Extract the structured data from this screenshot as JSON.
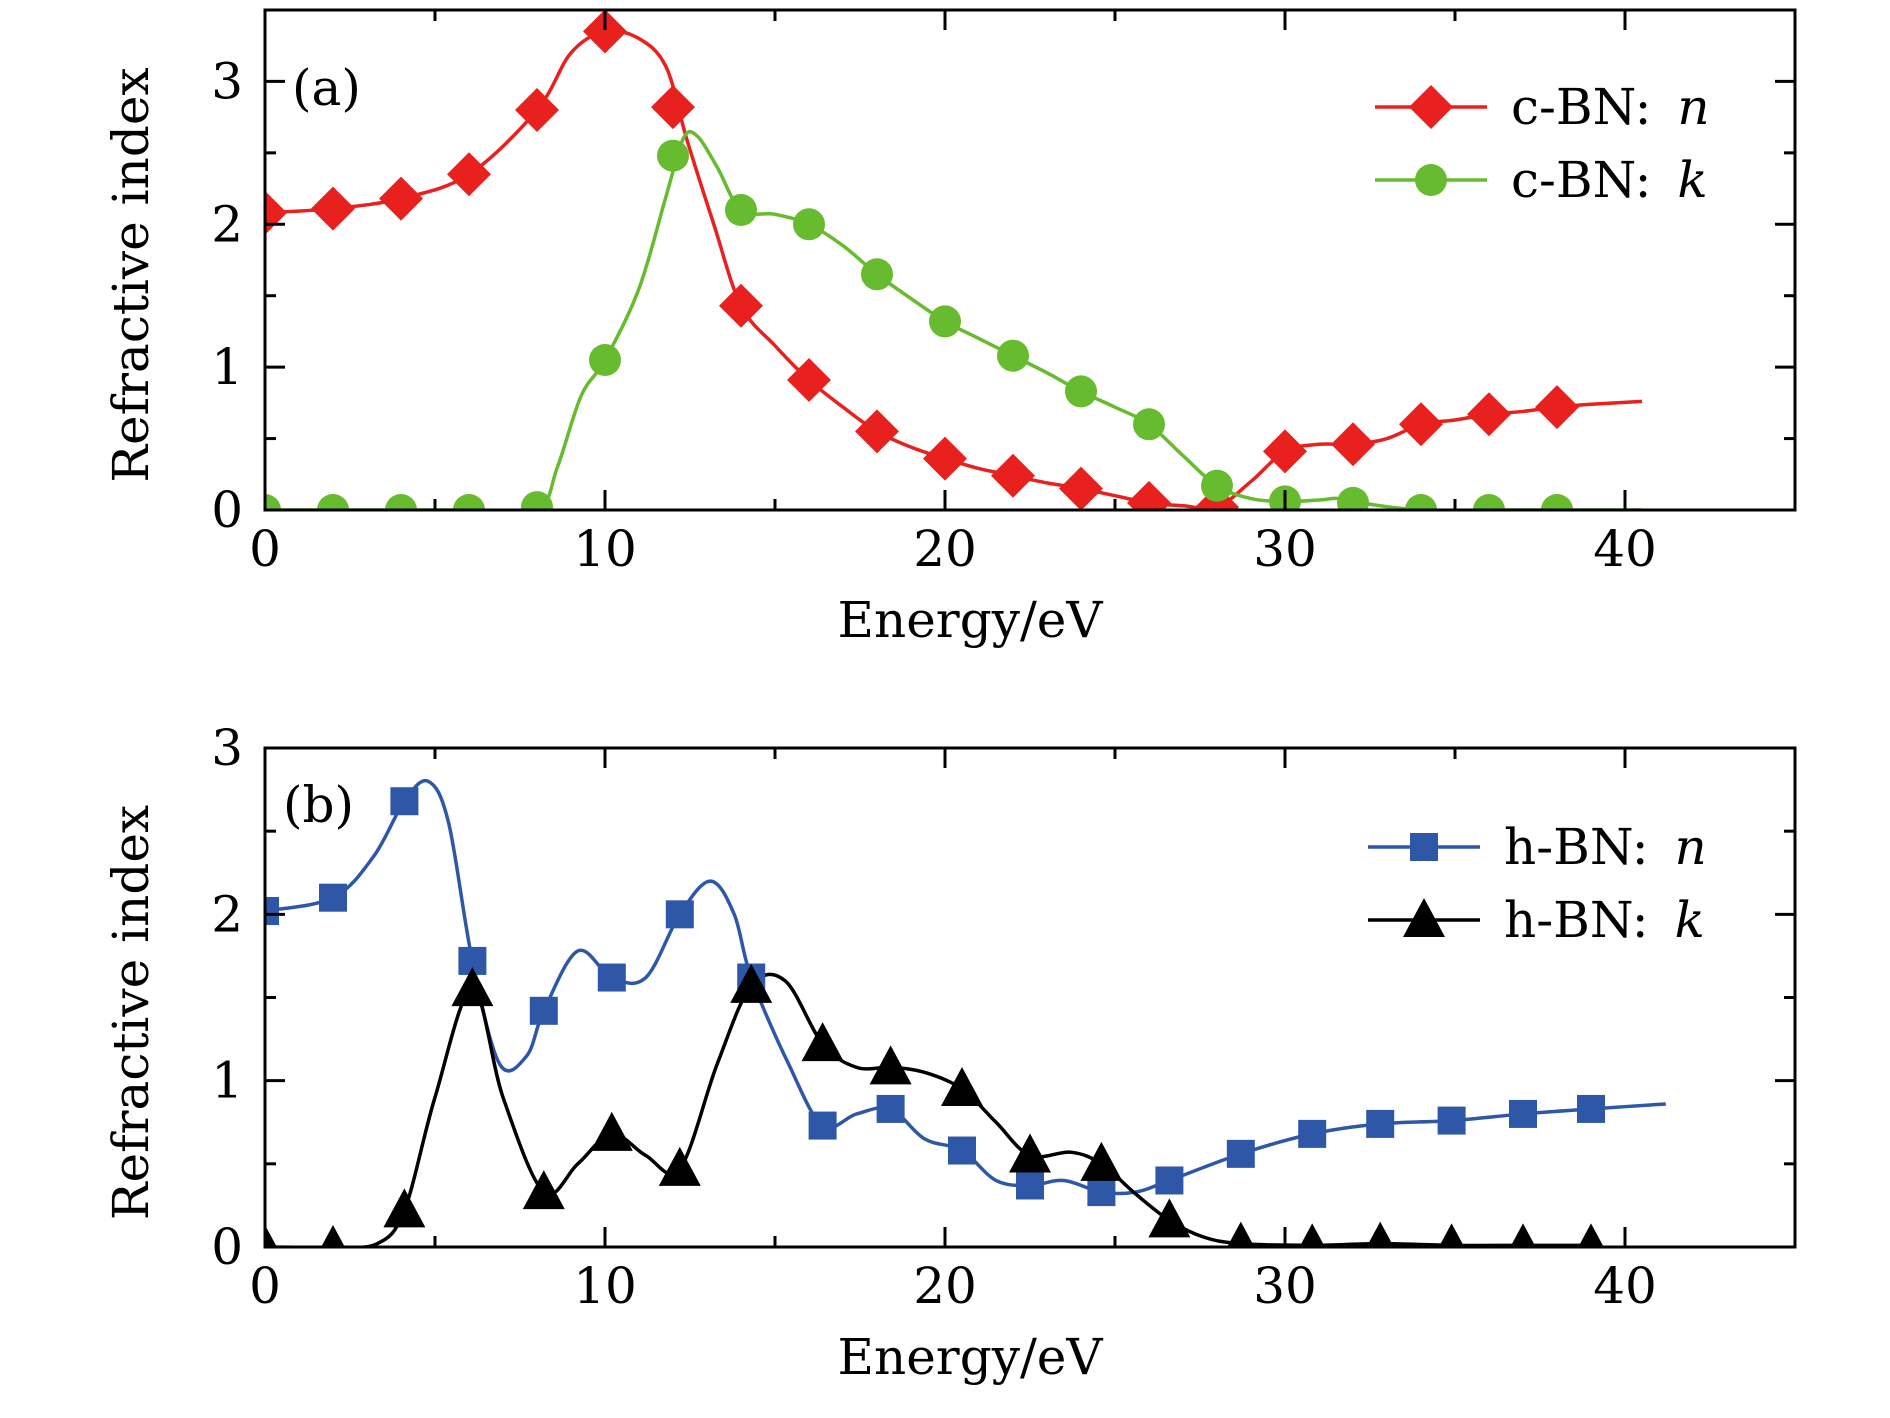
{
  "chart_data": [
    {
      "id": "a",
      "type": "line",
      "panel_label": "(a)",
      "xlabel": "Energy/eV",
      "ylabel": "Refractive index",
      "xlim": [
        0,
        45
      ],
      "ylim": [
        0,
        3.5
      ],
      "xticks": [
        0,
        10,
        20,
        30,
        40
      ],
      "yticks": [
        0,
        1,
        2,
        3
      ],
      "grid": false,
      "legend_position": "top-right",
      "series": [
        {
          "name": "c-BN: ",
          "var": "n",
          "color": "#e8201e",
          "marker": "diamond",
          "markers_x": [
            0,
            2,
            4,
            6,
            8,
            10,
            12,
            14,
            16,
            18,
            20,
            22,
            24,
            26,
            28,
            30,
            32,
            34,
            36,
            38
          ],
          "markers_y": [
            2.08,
            2.11,
            2.18,
            2.35,
            2.8,
            3.35,
            2.82,
            1.43,
            0.91,
            0.55,
            0.36,
            0.24,
            0.15,
            0.05,
            0.02,
            0.41,
            0.46,
            0.6,
            0.67,
            0.72
          ],
          "curve_x": [
            0,
            2,
            4,
            6,
            8,
            9,
            10,
            11,
            11.8,
            12.4,
            13.2,
            14,
            15,
            16,
            17,
            18,
            19,
            20,
            21,
            22,
            23,
            24,
            25,
            26,
            27,
            28,
            29,
            30,
            31,
            32,
            33,
            34,
            35,
            36,
            37,
            38,
            39,
            40.5
          ],
          "curve_y": [
            2.08,
            2.11,
            2.18,
            2.35,
            2.8,
            3.2,
            3.35,
            3.3,
            3.1,
            2.6,
            2.0,
            1.43,
            1.15,
            0.91,
            0.72,
            0.55,
            0.44,
            0.36,
            0.29,
            0.24,
            0.19,
            0.15,
            0.1,
            0.05,
            0.03,
            0.02,
            0.2,
            0.41,
            0.46,
            0.46,
            0.5,
            0.6,
            0.63,
            0.67,
            0.69,
            0.72,
            0.74,
            0.76
          ]
        },
        {
          "name": "c-BN: ",
          "var": "k",
          "color": "#66bb2e",
          "marker": "circle",
          "markers_x": [
            0,
            2,
            4,
            6,
            8,
            10,
            12,
            14,
            16,
            18,
            20,
            22,
            24,
            26,
            28,
            30,
            32,
            34,
            36,
            38
          ],
          "markers_y": [
            0.0,
            0.0,
            0.0,
            0.0,
            0.02,
            1.05,
            2.48,
            2.1,
            2.0,
            1.65,
            1.32,
            1.08,
            0.83,
            0.6,
            0.17,
            0.06,
            0.05,
            0.0,
            0.0,
            0.0
          ],
          "curve_x": [
            0,
            2,
            4,
            6,
            8,
            8.6,
            9.3,
            10,
            11,
            11.8,
            12.3,
            12.7,
            13.3,
            14,
            15,
            16,
            17,
            18,
            19,
            20,
            21,
            22,
            23,
            24,
            25,
            26,
            27,
            28,
            29,
            30,
            31,
            31.6,
            32.5,
            34,
            36,
            38,
            40.5
          ],
          "curve_y": [
            0.0,
            0.0,
            0.0,
            0.0,
            0.0,
            0.3,
            0.8,
            1.05,
            1.55,
            2.2,
            2.6,
            2.62,
            2.4,
            2.1,
            2.07,
            2.0,
            1.85,
            1.65,
            1.48,
            1.32,
            1.2,
            1.08,
            0.96,
            0.83,
            0.72,
            0.6,
            0.38,
            0.17,
            0.08,
            0.06,
            0.07,
            0.08,
            0.04,
            0.0,
            0.0,
            0.0,
            0.0
          ]
        }
      ]
    },
    {
      "id": "b",
      "type": "line",
      "panel_label": "(b)",
      "xlabel": "Energy/eV",
      "ylabel": "Refractive index",
      "xlim": [
        0,
        45
      ],
      "ylim": [
        0,
        3
      ],
      "xticks": [
        0,
        10,
        20,
        30,
        40
      ],
      "yticks": [
        0,
        1,
        2,
        3
      ],
      "grid": false,
      "legend_position": "top-right",
      "series": [
        {
          "name": "h-BN: ",
          "var": "n",
          "color": "#2e57a8",
          "marker": "square",
          "markers_x": [
            0,
            2,
            4.1,
            6.1,
            8.2,
            10.2,
            12.2,
            14.3,
            16.4,
            18.4,
            20.5,
            22.5,
            24.6,
            26.6,
            28.7,
            30.8,
            32.8,
            34.9,
            37,
            39
          ],
          "markers_y": [
            2.02,
            2.1,
            2.68,
            1.72,
            1.42,
            1.62,
            2.0,
            1.62,
            0.73,
            0.83,
            0.58,
            0.37,
            0.33,
            0.4,
            0.56,
            0.68,
            0.74,
            0.76,
            0.8,
            0.83
          ],
          "curve_x": [
            0,
            2,
            3.2,
            4.1,
            4.8,
            5.4,
            6.1,
            6.9,
            7.7,
            8.2,
            9.2,
            10.2,
            11.2,
            12.2,
            13.1,
            13.8,
            14.3,
            15.4,
            16.4,
            17.4,
            18.4,
            19.4,
            20.5,
            21.5,
            22.5,
            23.5,
            24.6,
            25.6,
            26.6,
            28.7,
            30.8,
            32.8,
            34.9,
            37,
            39,
            41.2
          ],
          "curve_y": [
            2.02,
            2.1,
            2.35,
            2.68,
            2.8,
            2.55,
            1.72,
            1.1,
            1.15,
            1.42,
            1.78,
            1.62,
            1.62,
            2.0,
            2.2,
            2.0,
            1.62,
            1.1,
            0.73,
            0.8,
            0.83,
            0.65,
            0.58,
            0.4,
            0.37,
            0.4,
            0.33,
            0.33,
            0.4,
            0.56,
            0.68,
            0.74,
            0.76,
            0.8,
            0.83,
            0.86
          ]
        },
        {
          "name": "h-BN: ",
          "var": "k",
          "color": "#000000",
          "marker": "triangle",
          "markers_x": [
            0,
            2,
            4.1,
            6.1,
            8.2,
            10.2,
            12.2,
            14.3,
            16.4,
            18.4,
            20.5,
            22.5,
            24.6,
            26.6,
            28.7,
            30.8,
            32.8,
            34.9,
            37,
            39
          ],
          "markers_y": [
            0.0,
            0.0,
            0.22,
            1.55,
            0.33,
            0.68,
            0.47,
            1.57,
            1.22,
            1.08,
            0.95,
            0.55,
            0.5,
            0.16,
            0.02,
            0.01,
            0.02,
            0.01,
            0.01,
            0.01
          ],
          "curve_x": [
            0,
            2,
            3.3,
            4.1,
            5.0,
            6.1,
            7.0,
            8.2,
            9.2,
            10.2,
            11.2,
            12.2,
            13.3,
            14.3,
            15.3,
            16.4,
            17.4,
            18.4,
            19.4,
            20.5,
            21.5,
            22.5,
            23.7,
            24.6,
            25.6,
            26.6,
            27.6,
            28.7,
            30.8,
            32.8,
            34.9,
            37,
            39
          ],
          "curve_y": [
            0.0,
            0.0,
            0.02,
            0.22,
            0.9,
            1.55,
            0.9,
            0.33,
            0.5,
            0.68,
            0.55,
            0.47,
            1.1,
            1.57,
            1.6,
            1.22,
            1.08,
            1.08,
            1.05,
            0.95,
            0.75,
            0.55,
            0.57,
            0.5,
            0.32,
            0.16,
            0.06,
            0.02,
            0.01,
            0.02,
            0.01,
            0.01,
            0.01
          ]
        }
      ]
    }
  ]
}
